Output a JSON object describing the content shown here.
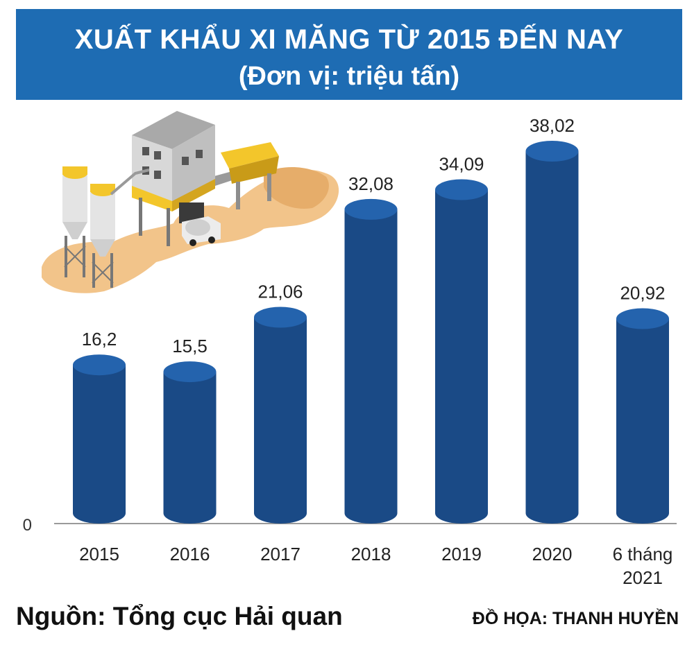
{
  "header": {
    "title": "XUẤT KHẨU XI MĂNG TỪ 2015 ĐẾN NAY",
    "subtitle": "(Đơn vị: triệu tấn)"
  },
  "chart_data": {
    "type": "bar",
    "title": "XUẤT KHẨU XI MĂNG TỪ 2015 ĐẾN NAY",
    "subtitle": "(Đơn vị: triệu tấn)",
    "categories": [
      "2015",
      "2016",
      "2017",
      "2018",
      "2019",
      "2020",
      "6 tháng 2021"
    ],
    "values": [
      16.2,
      15.5,
      21.06,
      32.08,
      34.09,
      38.02,
      20.92
    ],
    "value_labels": [
      "16,2",
      "15,5",
      "21,06",
      "32,08",
      "34,09",
      "38,02",
      "20,92"
    ],
    "y_tick_label": "0",
    "ylim": [
      0,
      38.02
    ],
    "grid": false,
    "bar_color": "#1a4a86",
    "bar_top_color": "#2463ad"
  },
  "footer": {
    "source": "Nguồn: Tổng cục Hải quan",
    "credit": "ĐỒ HỌA: THANH HUYỀN"
  },
  "colors": {
    "header_bg": "#1e6cb3",
    "sand": "#f2c48a",
    "building_yellow": "#f3c62b"
  },
  "illustration": {
    "icon": "cement-plant-illustration"
  }
}
